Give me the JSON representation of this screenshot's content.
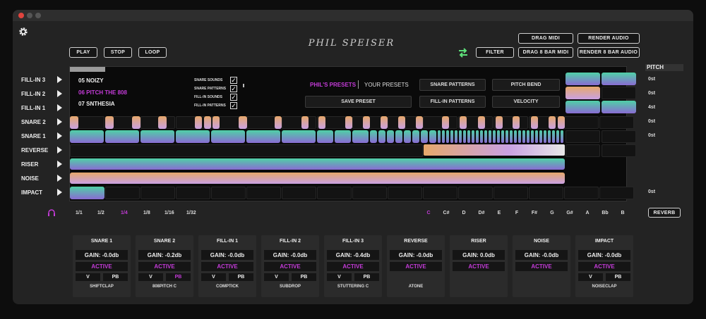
{
  "artist": "PHIL SPEISER",
  "toolbar": {
    "play": "PLAY",
    "stop": "STOP",
    "loop": "LOOP",
    "filter": "FILTER",
    "drag_midi": "DRAG MIDI",
    "render_audio": "RENDER AUDIO",
    "drag_8bar_midi": "DRAG  8 BAR MIDI",
    "render_8bar_audio": "RENDER 8 BAR AUDIO"
  },
  "presets_list": [
    "05 NOIZY",
    "06 PITCH THE 808",
    "07 SNTHESIA"
  ],
  "options": [
    "SNARE SOUNDS",
    "SNARE PATTERNS",
    "FILL-IN SOUNDS",
    "FILL-IN PATTERNS"
  ],
  "preset_tabs": {
    "phils": "PHIL'S PRESETS",
    "yours": "YOUR PRESETS"
  },
  "panel_buttons": {
    "save_preset": "SAVE PRESET",
    "snare_patterns": "SNARE PATTERNS",
    "fill_in_patterns": "FILL-IN PATTERNS",
    "pitch_bend": "PITCH BEND",
    "velocity": "VELOCITY"
  },
  "tracks": [
    "FILL-IN 3",
    "FILL-IN 2",
    "FILL-IN 1",
    "SNARE 2",
    "SNARE 1",
    "REVERSE",
    "RISER",
    "NOISE",
    "IMPACT"
  ],
  "pitch": {
    "header": "PITCH",
    "values": [
      "0st",
      "0st",
      "4st",
      "0st",
      "0st",
      "0st"
    ]
  },
  "grid_options": [
    "1/1",
    "1/2",
    "1/4",
    "1/8",
    "1/16",
    "1/32"
  ],
  "selected_grid": "1/4",
  "notes": [
    "C",
    "C#",
    "D",
    "D#",
    "E",
    "F",
    "F#",
    "G",
    "G#",
    "A",
    "Bb",
    "B"
  ],
  "selected_note": "C",
  "reverb": "REVERB",
  "channels": [
    {
      "name": "SNARE 1",
      "gain": "GAIN: -0.0db",
      "status": "ACTIVE",
      "v": "V",
      "pb": "PB",
      "pb_active": false,
      "sample": "SHIFTCLAP"
    },
    {
      "name": "SNARE 2",
      "gain": "GAIN: -0.2db",
      "status": "ACTIVE",
      "v": "V",
      "pb": "PB",
      "pb_active": true,
      "sample": "808PITCH C"
    },
    {
      "name": "FILL-IN 1",
      "gain": "GAIN: -0.0db",
      "status": "ACTIVE",
      "v": "V",
      "pb": "PB",
      "pb_active": false,
      "sample": "COMPTICK"
    },
    {
      "name": "FILL-IN 2",
      "gain": "GAIN: -0.0db",
      "status": "ACTIVE",
      "v": "V",
      "pb": "PB",
      "pb_active": false,
      "sample": "SUBDROP"
    },
    {
      "name": "FILL-IN 3",
      "gain": "GAIN: -0.4db",
      "status": "ACTIVE",
      "v": "V",
      "pb": "PB",
      "pb_active": false,
      "sample": "STUTTERING C"
    },
    {
      "name": "REVERSE",
      "gain": "GAIN: -0.0db",
      "status": "ACTIVE",
      "sample": "ATONE"
    },
    {
      "name": "RISER",
      "gain": "GAIN: 0.0db",
      "status": "ACTIVE",
      "sample": ""
    },
    {
      "name": "NOISE",
      "gain": "GAIN: -0.0db",
      "status": "ACTIVE",
      "sample": ""
    },
    {
      "name": "IMPACT",
      "gain": "GAIN: -0.0db",
      "status": "ACTIVE",
      "v": "V",
      "pb": "PB",
      "pb_active": false,
      "sample": "NOISECLAP"
    }
  ],
  "colors": {
    "accent": "#c43bd8",
    "green_icon": "#5ee07a",
    "bg": "#232323",
    "clip_orange": "#e6a86a",
    "clip_teal": "#4fd1a6",
    "clip_purple": "#8a6bd3"
  },
  "icons": {
    "settings": "gear-icon",
    "swap": "swap-arrows-icon",
    "headphones": "headphones-icon",
    "play_track": "play-triangle-icon"
  }
}
